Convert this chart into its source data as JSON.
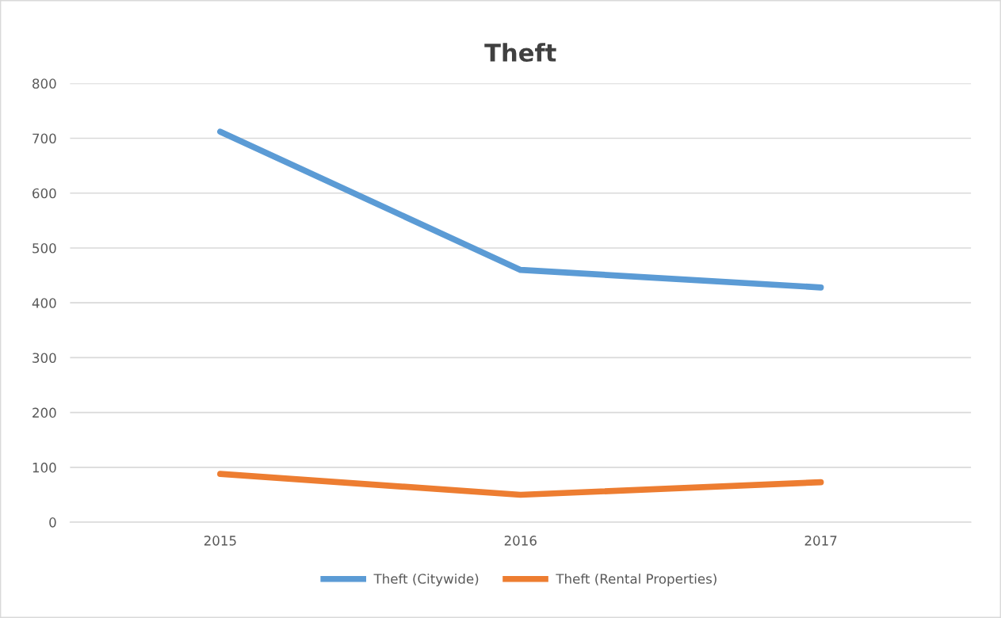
{
  "chart_data": {
    "type": "line",
    "title": "Theft",
    "categories": [
      "2015",
      "2016",
      "2017"
    ],
    "series": [
      {
        "name": "Theft (Citywide)",
        "color": "#5b9bd5",
        "values": [
          712,
          460,
          428
        ]
      },
      {
        "name": "Theft (Rental Properties)",
        "color": "#ed7d31",
        "values": [
          88,
          50,
          73
        ]
      }
    ],
    "ylim": [
      0,
      800
    ],
    "yticks": [
      0,
      100,
      200,
      300,
      400,
      500,
      600,
      700,
      800
    ],
    "grid": "y",
    "legend": "bottom",
    "marker": "none",
    "line_style": "solid"
  }
}
